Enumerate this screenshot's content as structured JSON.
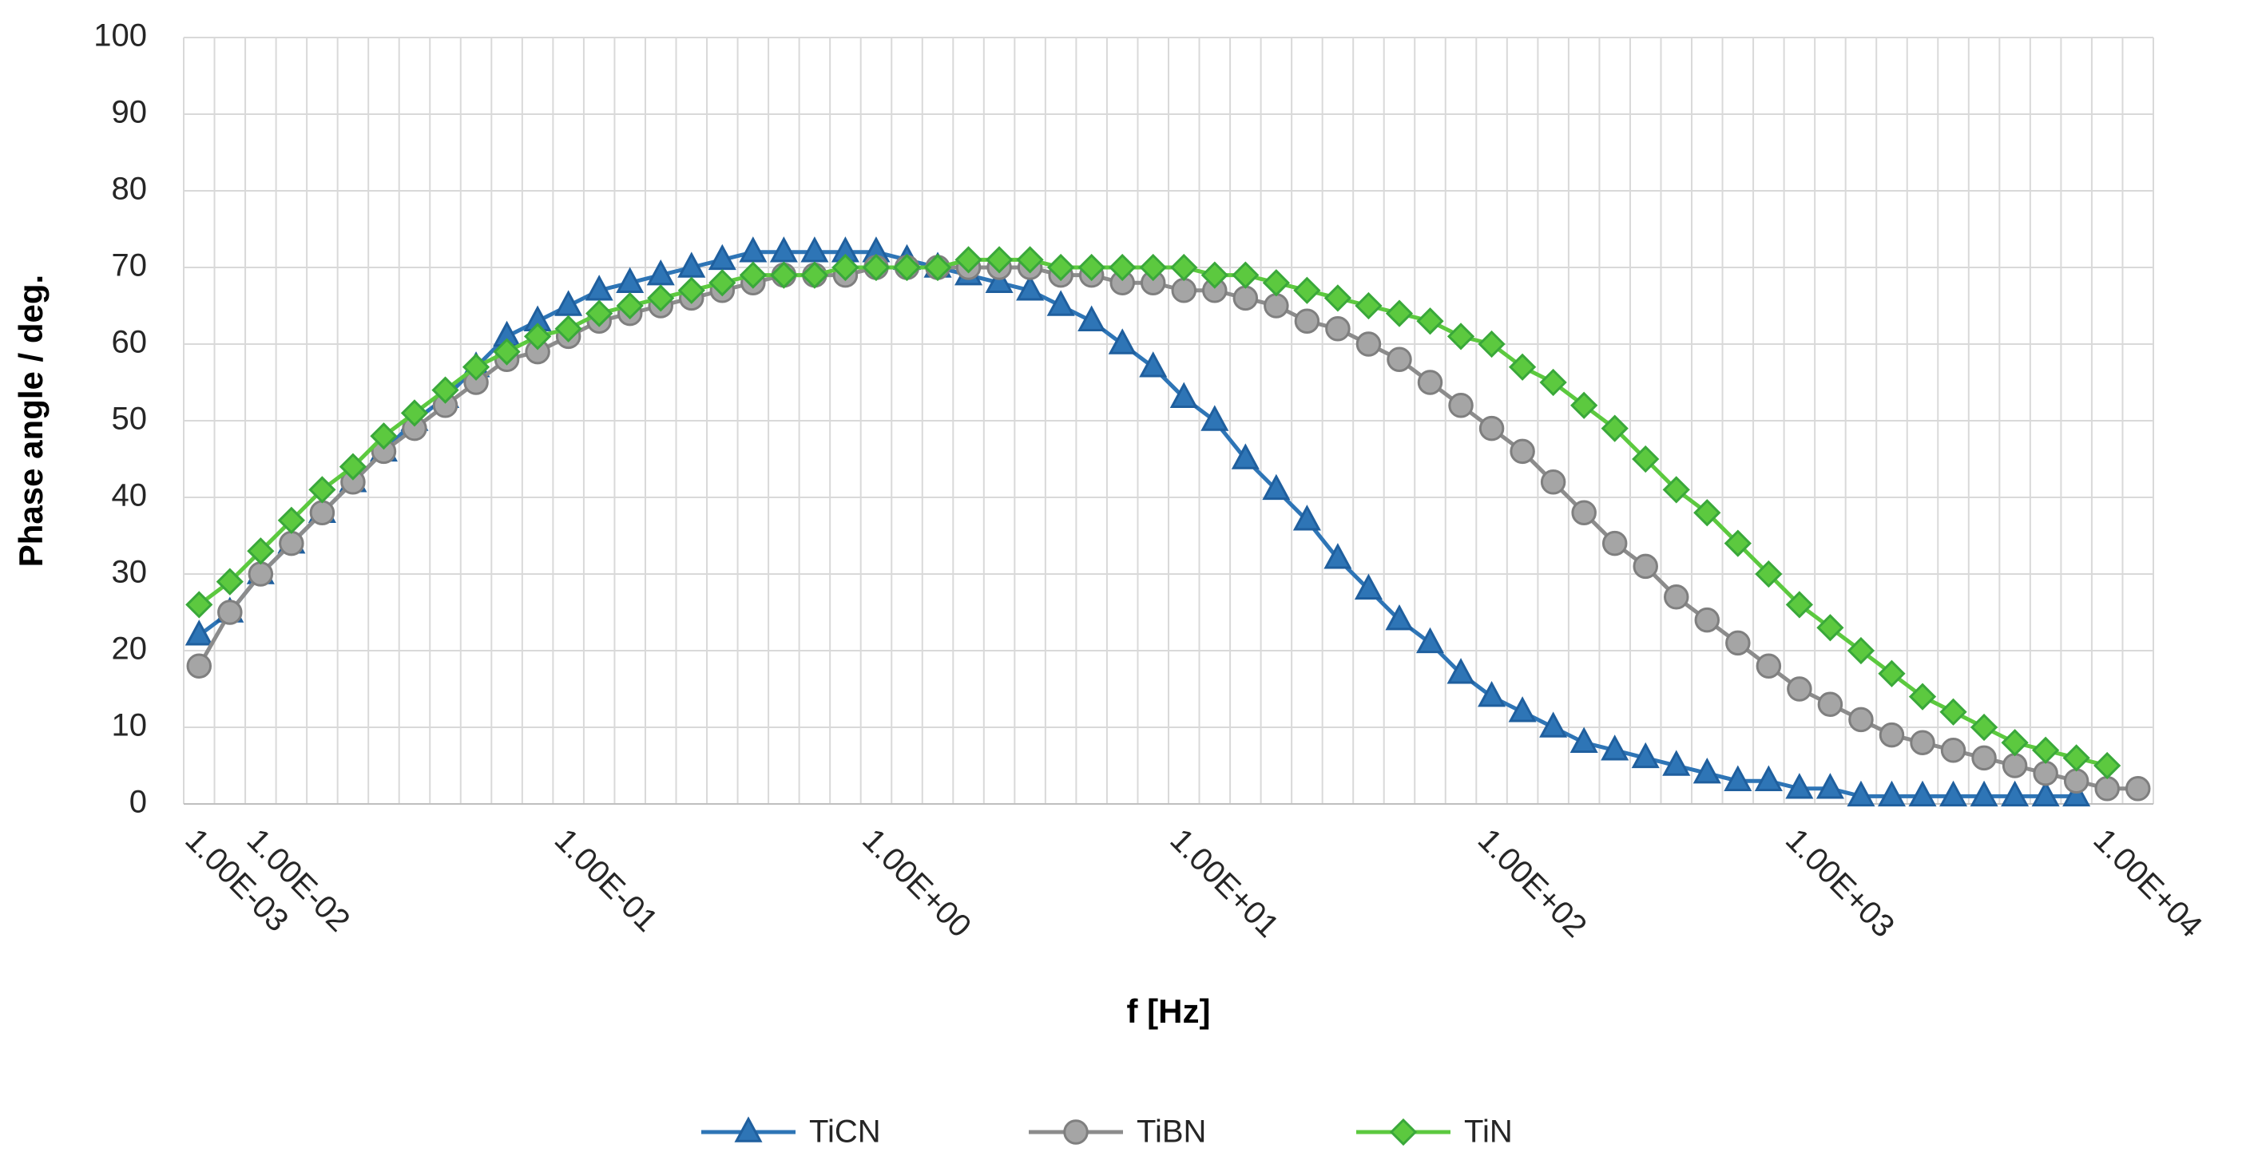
{
  "chart_data": {
    "type": "line",
    "y_label": "Phase angle / deg.",
    "x_label": "f [Hz]",
    "categories": [
      "1.00E-03",
      null,
      "1.00E-02",
      null,
      null,
      null,
      null,
      null,
      null,
      null,
      null,
      null,
      "1.00E-01",
      null,
      null,
      null,
      null,
      null,
      null,
      null,
      null,
      null,
      "1.00E+00",
      null,
      null,
      null,
      null,
      null,
      null,
      null,
      null,
      null,
      "1.00E+01",
      null,
      null,
      null,
      null,
      null,
      null,
      null,
      null,
      null,
      "1.00E+02",
      null,
      null,
      null,
      null,
      null,
      null,
      null,
      null,
      null,
      "1.00E+03",
      null,
      null,
      null,
      null,
      null,
      null,
      null,
      null,
      null,
      "1.00E+04",
      null
    ],
    "ylim": [
      0,
      100
    ],
    "yticks": [
      0,
      10,
      20,
      30,
      40,
      50,
      60,
      70,
      80,
      90,
      100
    ],
    "grid": true,
    "legend": "bottom",
    "series": [
      {
        "name": "TiCN",
        "color": "#2e75b6",
        "marker": "triangle",
        "values": [
          22,
          25,
          30,
          34,
          38,
          42,
          46,
          50,
          53,
          57,
          61,
          63,
          65,
          67,
          68,
          69,
          70,
          71,
          72,
          72,
          72,
          72,
          72,
          71,
          70,
          69,
          68,
          67,
          65,
          63,
          60,
          57,
          53,
          50,
          45,
          41,
          37,
          32,
          28,
          24,
          21,
          17,
          14,
          12,
          10,
          8,
          7,
          6,
          5,
          4,
          3,
          3,
          2,
          2,
          1,
          1,
          1,
          1,
          1,
          1,
          1,
          1,
          null,
          null
        ]
      },
      {
        "name": "TiBN",
        "color": "#a5a5a5",
        "marker": "circle",
        "values": [
          18,
          25,
          30,
          34,
          38,
          42,
          46,
          49,
          52,
          55,
          58,
          59,
          61,
          63,
          64,
          65,
          66,
          67,
          68,
          69,
          69,
          69,
          70,
          70,
          70,
          70,
          70,
          70,
          69,
          69,
          68,
          68,
          67,
          67,
          66,
          65,
          63,
          62,
          60,
          58,
          55,
          52,
          49,
          46,
          42,
          38,
          34,
          31,
          27,
          24,
          21,
          18,
          15,
          13,
          11,
          9,
          8,
          7,
          6,
          5,
          4,
          3,
          2,
          2
        ]
      },
      {
        "name": "TiN",
        "color": "#5cc93f",
        "marker": "diamond",
        "values": [
          26,
          29,
          33,
          37,
          41,
          44,
          48,
          51,
          54,
          57,
          59,
          61,
          62,
          64,
          65,
          66,
          67,
          68,
          69,
          69,
          69,
          70,
          70,
          70,
          70,
          71,
          71,
          71,
          70,
          70,
          70,
          70,
          70,
          69,
          69,
          68,
          67,
          66,
          65,
          64,
          63,
          61,
          60,
          57,
          55,
          52,
          49,
          45,
          41,
          38,
          34,
          30,
          26,
          23,
          20,
          17,
          14,
          12,
          10,
          8,
          7,
          6,
          5,
          null
        ]
      }
    ]
  }
}
